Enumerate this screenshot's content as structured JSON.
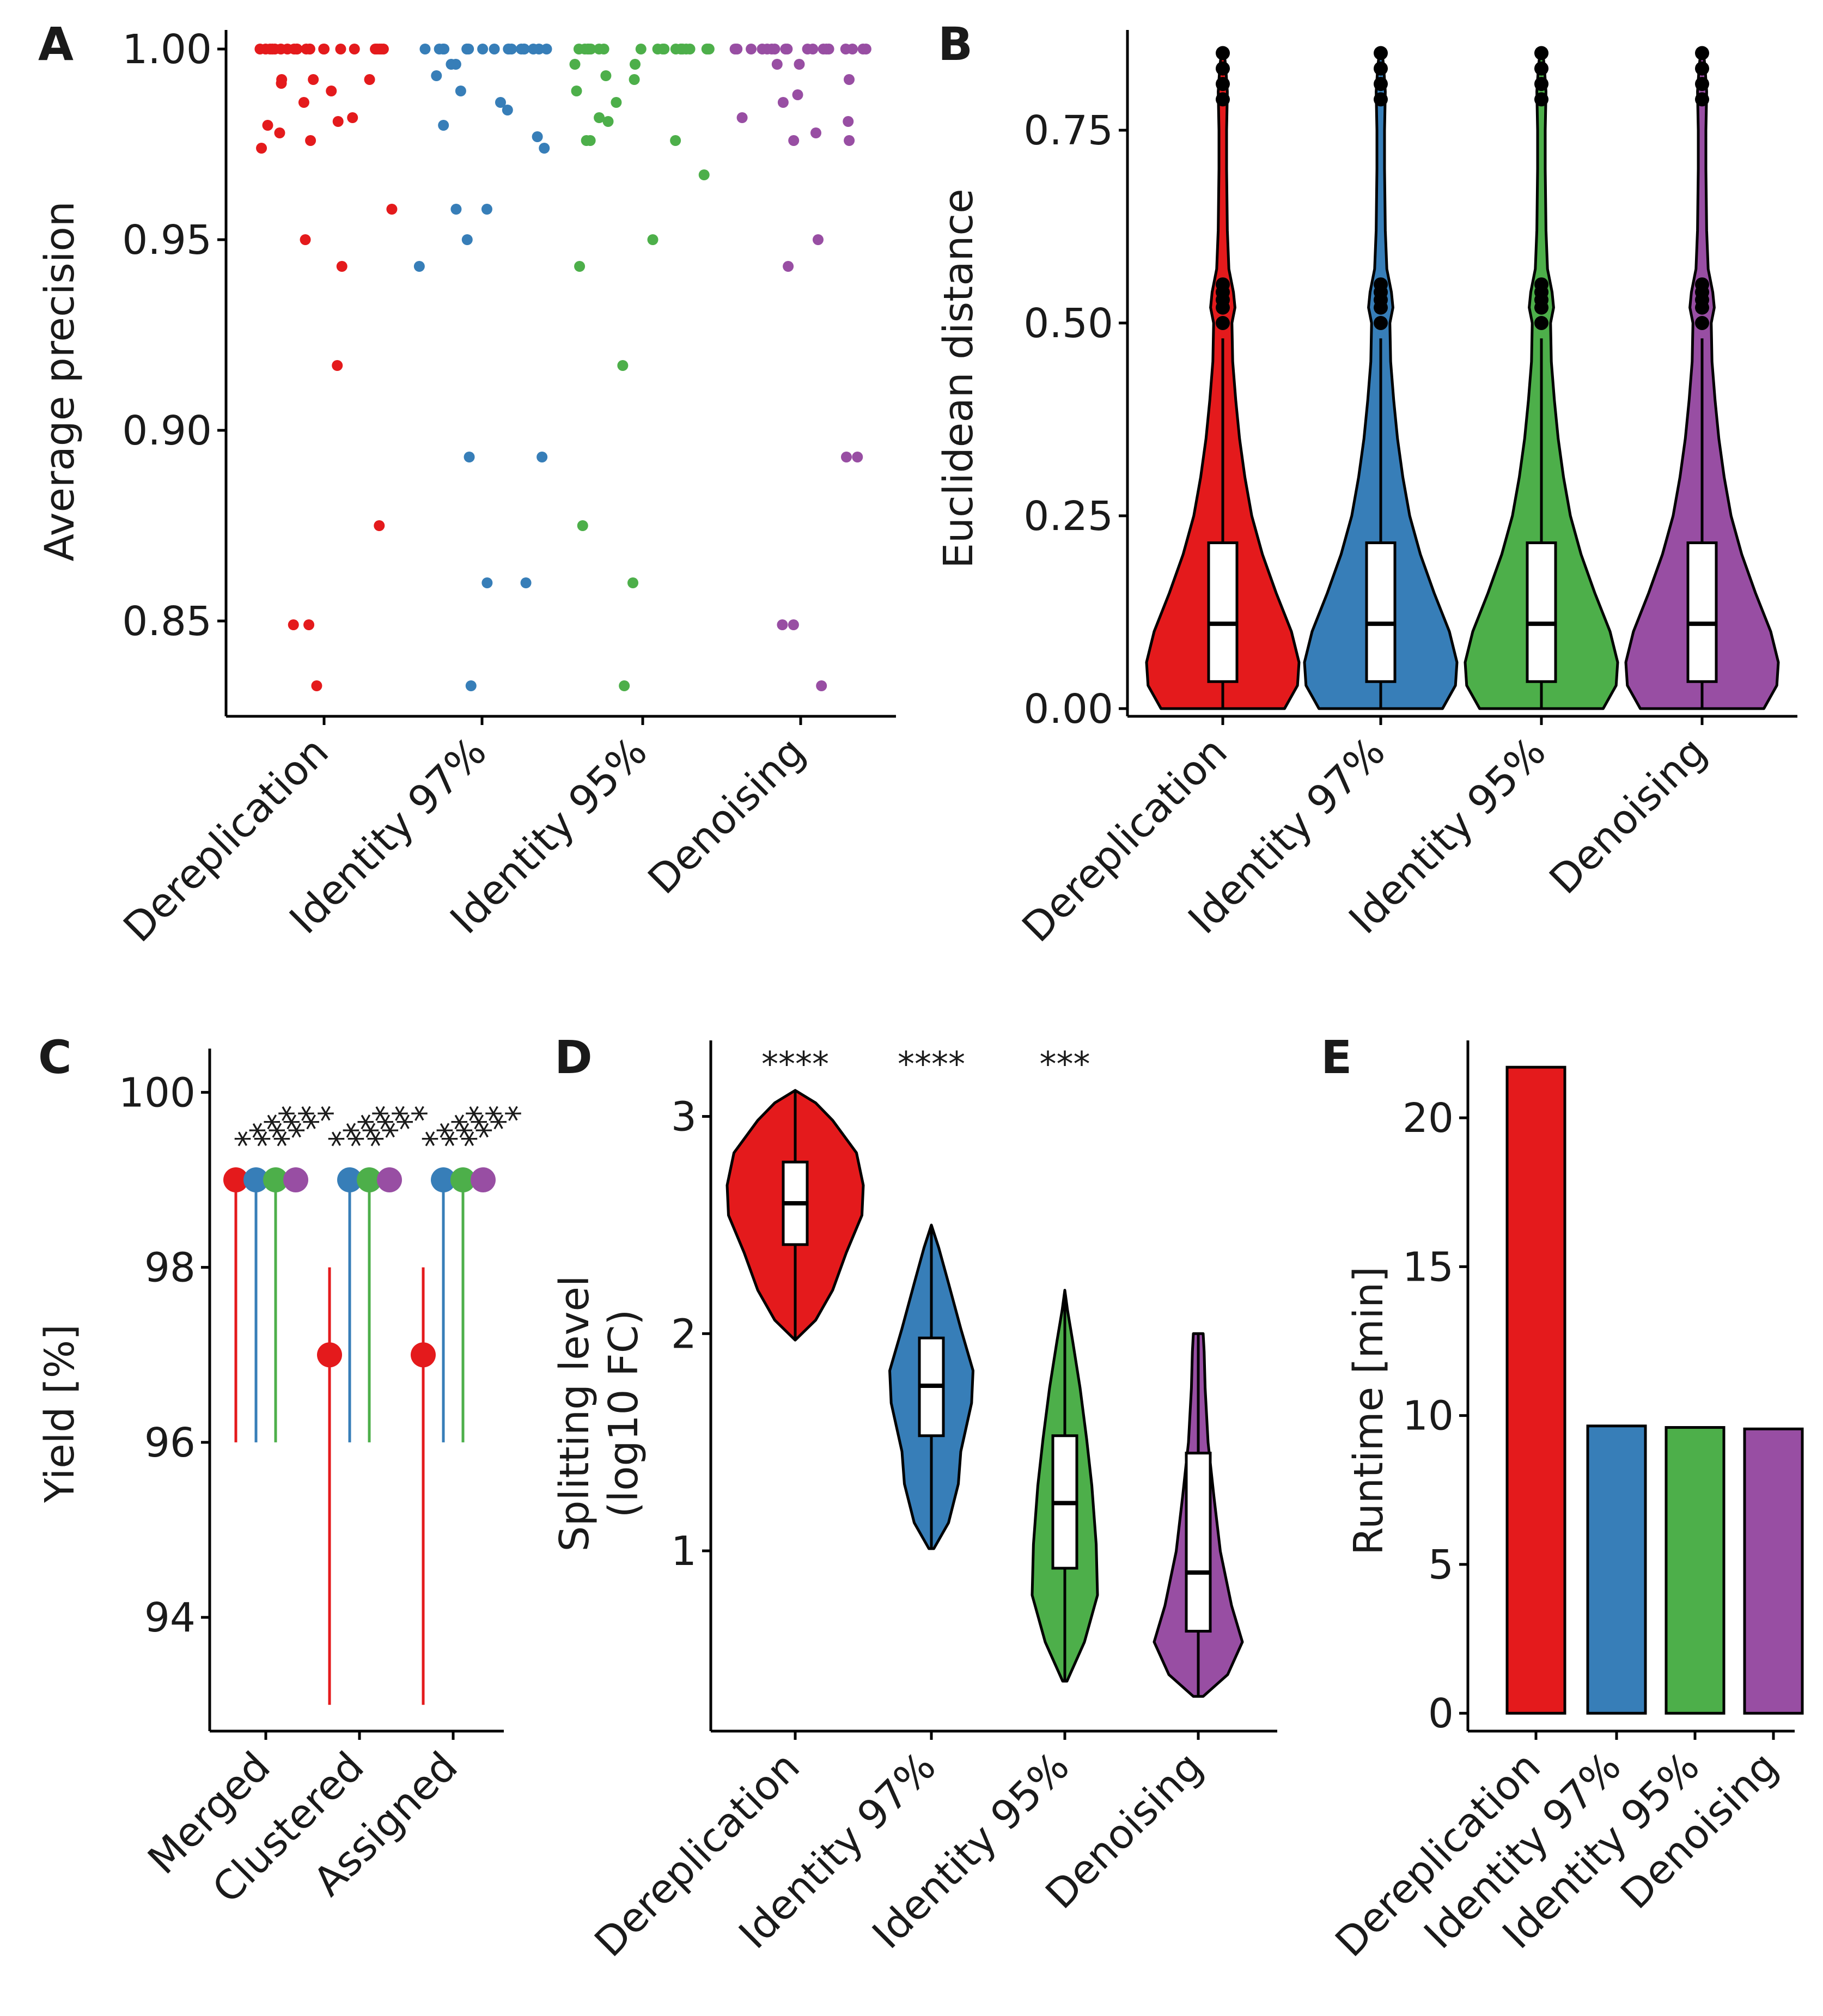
{
  "palette": {
    "Dereplication": "#e41a1c",
    "Identity 97%": "#377eb8",
    "Identity 95%": "#4daf4a",
    "Denoising": "#984ea3"
  },
  "chart_data": [
    {
      "panel": "A",
      "type": "scatter",
      "xlabel": "",
      "ylabel": "Average precision",
      "categories": [
        "Dereplication",
        "Identity 97%",
        "Identity 95%",
        "Denoising"
      ],
      "ylim": [
        0.825,
        1.005
      ],
      "yticks": [
        "0.85",
        "0.90",
        "0.95",
        "1.00"
      ],
      "series": [
        {
          "name": "Dereplication",
          "values": [
            1.0,
            1.0,
            1.0,
            1.0,
            1.0,
            1.0,
            1.0,
            1.0,
            1.0,
            1.0,
            1.0,
            1.0,
            1.0,
            1.0,
            1.0,
            1.0,
            1.0,
            1.0,
            1.0,
            1.0,
            1.0,
            1.0,
            0.992,
            0.992,
            0.992,
            0.991,
            0.989,
            0.986,
            0.982,
            0.981,
            0.98,
            0.978,
            0.976,
            0.974,
            0.958,
            0.95,
            0.943,
            0.917,
            0.875,
            0.849,
            0.849,
            0.833
          ]
        },
        {
          "name": "Identity 97%",
          "values": [
            1.0,
            1.0,
            1.0,
            1.0,
            1.0,
            1.0,
            1.0,
            1.0,
            1.0,
            1.0,
            1.0,
            1.0,
            1.0,
            1.0,
            1.0,
            1.0,
            1.0,
            1.0,
            0.996,
            0.996,
            0.993,
            0.989,
            0.986,
            0.984,
            0.98,
            0.977,
            0.974,
            0.958,
            0.958,
            0.95,
            0.943,
            0.893,
            0.893,
            0.86,
            0.86,
            0.833
          ]
        },
        {
          "name": "Identity 95%",
          "values": [
            1.0,
            1.0,
            1.0,
            1.0,
            1.0,
            1.0,
            1.0,
            1.0,
            1.0,
            1.0,
            1.0,
            1.0,
            1.0,
            1.0,
            1.0,
            1.0,
            1.0,
            1.0,
            1.0,
            1.0,
            0.996,
            0.996,
            0.993,
            0.992,
            0.989,
            0.986,
            0.982,
            0.981,
            0.976,
            0.976,
            0.976,
            0.967,
            0.95,
            0.943,
            0.917,
            0.875,
            0.86,
            0.833
          ]
        },
        {
          "name": "Denoising",
          "values": [
            1.0,
            1.0,
            1.0,
            1.0,
            1.0,
            1.0,
            1.0,
            1.0,
            1.0,
            1.0,
            1.0,
            1.0,
            1.0,
            1.0,
            1.0,
            1.0,
            1.0,
            1.0,
            1.0,
            0.996,
            0.996,
            0.992,
            0.988,
            0.986,
            0.982,
            0.981,
            0.978,
            0.976,
            0.976,
            0.95,
            0.943,
            0.893,
            0.893,
            0.849,
            0.849,
            0.833
          ]
        }
      ]
    },
    {
      "panel": "B",
      "type": "violin",
      "xlabel": "",
      "ylabel": "Euclidean distance",
      "categories": [
        "Dereplication",
        "Identity 97%",
        "Identity 95%",
        "Denoising"
      ],
      "ylim": [
        -0.01,
        0.88
      ],
      "yticks": [
        "0.00",
        "0.25",
        "0.50",
        "0.75"
      ],
      "box": {
        "q1": 0.035,
        "median": 0.11,
        "q3": 0.215,
        "whisker_low": 0.0,
        "whisker_high": 0.48
      },
      "outliers": [
        0.5,
        0.52,
        0.53,
        0.54,
        0.55,
        0.79,
        0.81,
        0.83,
        0.85
      ],
      "range": [
        0.0,
        0.85
      ]
    },
    {
      "panel": "C",
      "type": "pointrange",
      "xlabel": "",
      "ylabel": "Yield [%]",
      "categories": [
        "Merged",
        "Clustered",
        "Assigned"
      ],
      "ylim": [
        92.7,
        100.5
      ],
      "yticks": [
        "94",
        "96",
        "98",
        "100"
      ],
      "series": [
        {
          "name": "Dereplication",
          "points": [
            {
              "y": 99,
              "low": 96,
              "high": 99
            },
            {
              "y": 97,
              "low": 93,
              "high": 98
            },
            {
              "y": 97,
              "low": 93,
              "high": 98
            }
          ]
        },
        {
          "name": "Identity 97%",
          "points": [
            {
              "y": 99,
              "low": 96,
              "high": 99
            },
            {
              "y": 99,
              "low": 96,
              "high": 99
            },
            {
              "y": 99,
              "low": 96,
              "high": 99
            }
          ]
        },
        {
          "name": "Identity 95%",
          "points": [
            {
              "y": 99,
              "low": 96,
              "high": 99
            },
            {
              "y": 99,
              "low": 96,
              "high": 99
            },
            {
              "y": 99,
              "low": 96,
              "high": 99
            }
          ]
        },
        {
          "name": "Denoising",
          "points": [
            {
              "y": 99,
              "low": 99,
              "high": 99
            },
            {
              "y": 99,
              "low": 99,
              "high": 99
            },
            {
              "y": 99,
              "low": 99,
              "high": 99
            }
          ]
        }
      ],
      "significance": [
        "****",
        "****",
        "****"
      ]
    },
    {
      "panel": "D",
      "type": "violin",
      "xlabel": "",
      "ylabel": "Splitting level",
      "ylabel2": "(log10 FC)",
      "categories": [
        "Dereplication",
        "Identity 97%",
        "Identity 95%",
        "Denoising"
      ],
      "ylim": [
        0.17,
        3.35
      ],
      "yticks": [
        "1",
        "2",
        "3"
      ],
      "significance": [
        "****",
        "****",
        "***",
        ""
      ],
      "violins": [
        {
          "name": "Dereplication",
          "min": 1.97,
          "max": 3.12,
          "q1": 2.41,
          "median": 2.6,
          "q3": 2.79
        },
        {
          "name": "Identity 97%",
          "min": 1.01,
          "max": 2.5,
          "q1": 1.53,
          "median": 1.76,
          "q3": 1.98
        },
        {
          "name": "Identity 95%",
          "min": 0.4,
          "max": 2.2,
          "q1": 0.92,
          "median": 1.22,
          "q3": 1.53
        },
        {
          "name": "Denoising",
          "min": 0.33,
          "max": 2.0,
          "q1": 0.63,
          "median": 0.9,
          "q3": 1.45
        }
      ]
    },
    {
      "panel": "E",
      "type": "bar",
      "xlabel": "",
      "ylabel": "Runtime [min]",
      "categories": [
        "Dereplication",
        "Identity 97%",
        "Identity 95%",
        "Denoising"
      ],
      "values": [
        21.7,
        9.65,
        9.6,
        9.55
      ],
      "ylim": [
        -0.6,
        22.6
      ],
      "yticks": [
        "0",
        "5",
        "10",
        "15",
        "20"
      ]
    }
  ]
}
